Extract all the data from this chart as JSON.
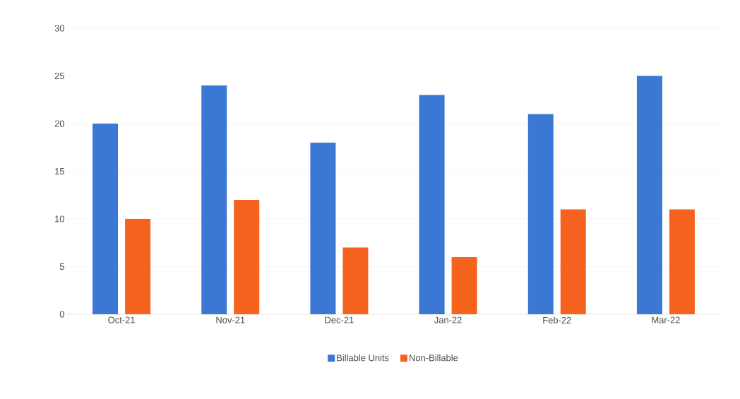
{
  "chart_data": {
    "type": "bar",
    "categories": [
      "Oct-21",
      "Nov-21",
      "Dec-21",
      "Jan-22",
      "Feb-22",
      "Mar-22"
    ],
    "series": [
      {
        "name": "Billable Units",
        "color": "#3b78d4",
        "values": [
          20,
          24,
          18,
          23,
          21,
          25
        ]
      },
      {
        "name": "Non-Billable",
        "color": "#f5631f",
        "values": [
          10,
          12,
          7,
          6,
          11,
          11
        ]
      }
    ],
    "ylim": [
      0,
      30
    ],
    "yticks": [
      0,
      5,
      10,
      15,
      20,
      25,
      30
    ],
    "grid": "y",
    "legend": "bottom"
  }
}
